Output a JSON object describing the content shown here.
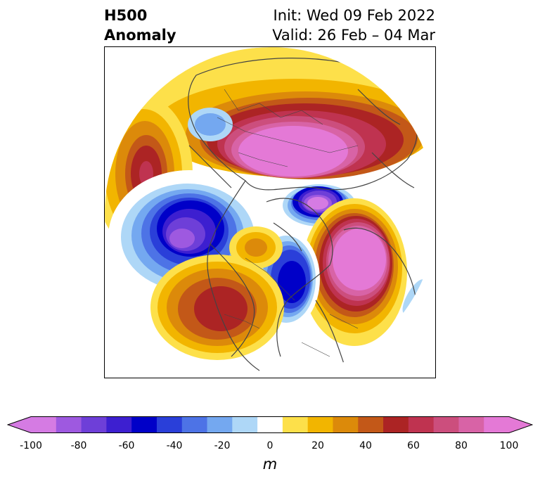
{
  "title": {
    "left_line1": "H500",
    "left_line2": "Anomaly",
    "right_line1": "Init: Wed 09 Feb 2022",
    "right_line2": "Valid: 26 Feb – 04 Mar"
  },
  "map": {
    "projection": "polar-stereographic",
    "field": "500 hPa geopotential height anomaly",
    "features": [
      {
        "label": "positive anomaly",
        "region": "Siberia / Arctic Russia",
        "peak_m": 100
      },
      {
        "label": "positive anomaly",
        "region": "North Pacific / Aleutians",
        "peak_m": 70
      },
      {
        "label": "positive anomaly",
        "region": "Western Europe / Eastern Atlantic",
        "peak_m": 100
      },
      {
        "label": "positive anomaly",
        "region": "Western North America",
        "peak_m": 60
      },
      {
        "label": "positive anomaly",
        "region": "Alaska / NW Canada",
        "peak_m": 30
      },
      {
        "label": "negative anomaly",
        "region": "Central Asia / Caspian",
        "peak_m": -90
      },
      {
        "label": "negative anomaly",
        "region": "Greenland / North Atlantic",
        "peak_m": -100
      },
      {
        "label": "negative anomaly",
        "region": "Eastern Canada / Hudson Bay",
        "peak_m": -60
      },
      {
        "label": "negative anomaly",
        "region": "East Asia",
        "peak_m": -20
      }
    ]
  },
  "colorbar": {
    "unit": "m",
    "ticks": [
      "-100",
      "-80",
      "-60",
      "-40",
      "-20",
      "0",
      "20",
      "40",
      "60",
      "80",
      "100"
    ],
    "levels": [
      -100,
      -90,
      -80,
      -70,
      -60,
      -50,
      -40,
      -30,
      -20,
      -10,
      10,
      20,
      30,
      40,
      50,
      60,
      70,
      80,
      90,
      100
    ],
    "colors": [
      "#d57be3",
      "#9e59e0",
      "#6e3fd8",
      "#3d1fd0",
      "#0000c8",
      "#2a3fd9",
      "#4d73e6",
      "#74a8f0",
      "#aed7f7",
      "#ffffff",
      "#fde04a",
      "#f2b500",
      "#dc8a0a",
      "#c35818",
      "#ac2424",
      "#bf3350",
      "#cc4e7d",
      "#d863a6",
      "#e479d6"
    ],
    "under_color": "#d57be3",
    "over_color": "#e479d6"
  }
}
